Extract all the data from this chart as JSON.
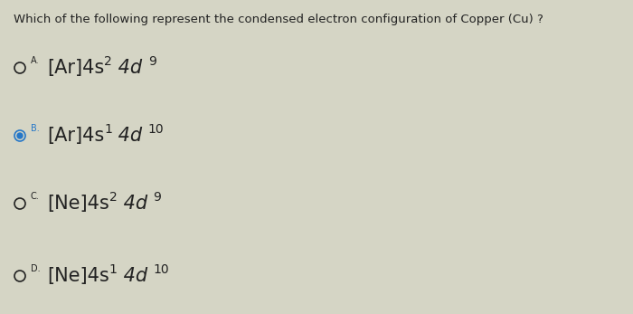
{
  "question": "Which of the following represent the condensed electron configuration of Copper (Cu) ?",
  "options": [
    {
      "label": "A.",
      "base1": "[Ar]4s",
      "sup1": "2",
      "base2": " 4d ",
      "sup2": "9",
      "selected": false
    },
    {
      "label": "B.",
      "base1": "[Ar]4s",
      "sup1": "1",
      "base2": " 4d ",
      "sup2": "10",
      "selected": true
    },
    {
      "label": "C.",
      "base1": "[Ne]4s",
      "sup1": "2",
      "base2": " 4d ",
      "sup2": "9",
      "selected": false
    },
    {
      "label": "D.",
      "base1": "[Ne]4s",
      "sup1": "1",
      "base2": " 4d ",
      "sup2": "10",
      "selected": false
    }
  ],
  "bg_color": "#d5d5c5",
  "text_color": "#222222",
  "selected_color": "#2577c8",
  "question_fontsize": 9.5,
  "option_fontsize": 15,
  "label_fontsize": 7,
  "sup_fontsize": 10
}
